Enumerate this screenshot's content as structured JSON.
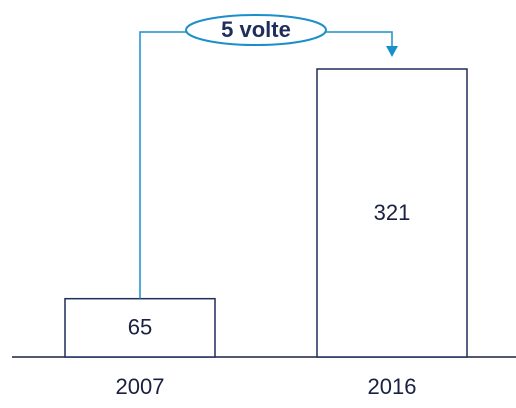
{
  "chart_data": {
    "type": "bar",
    "categories": [
      "2007",
      "2016"
    ],
    "values": [
      65,
      321
    ],
    "color": "#1f2d5a",
    "annotation": "5 volte",
    "annotation_color": "#1a8fc9"
  }
}
